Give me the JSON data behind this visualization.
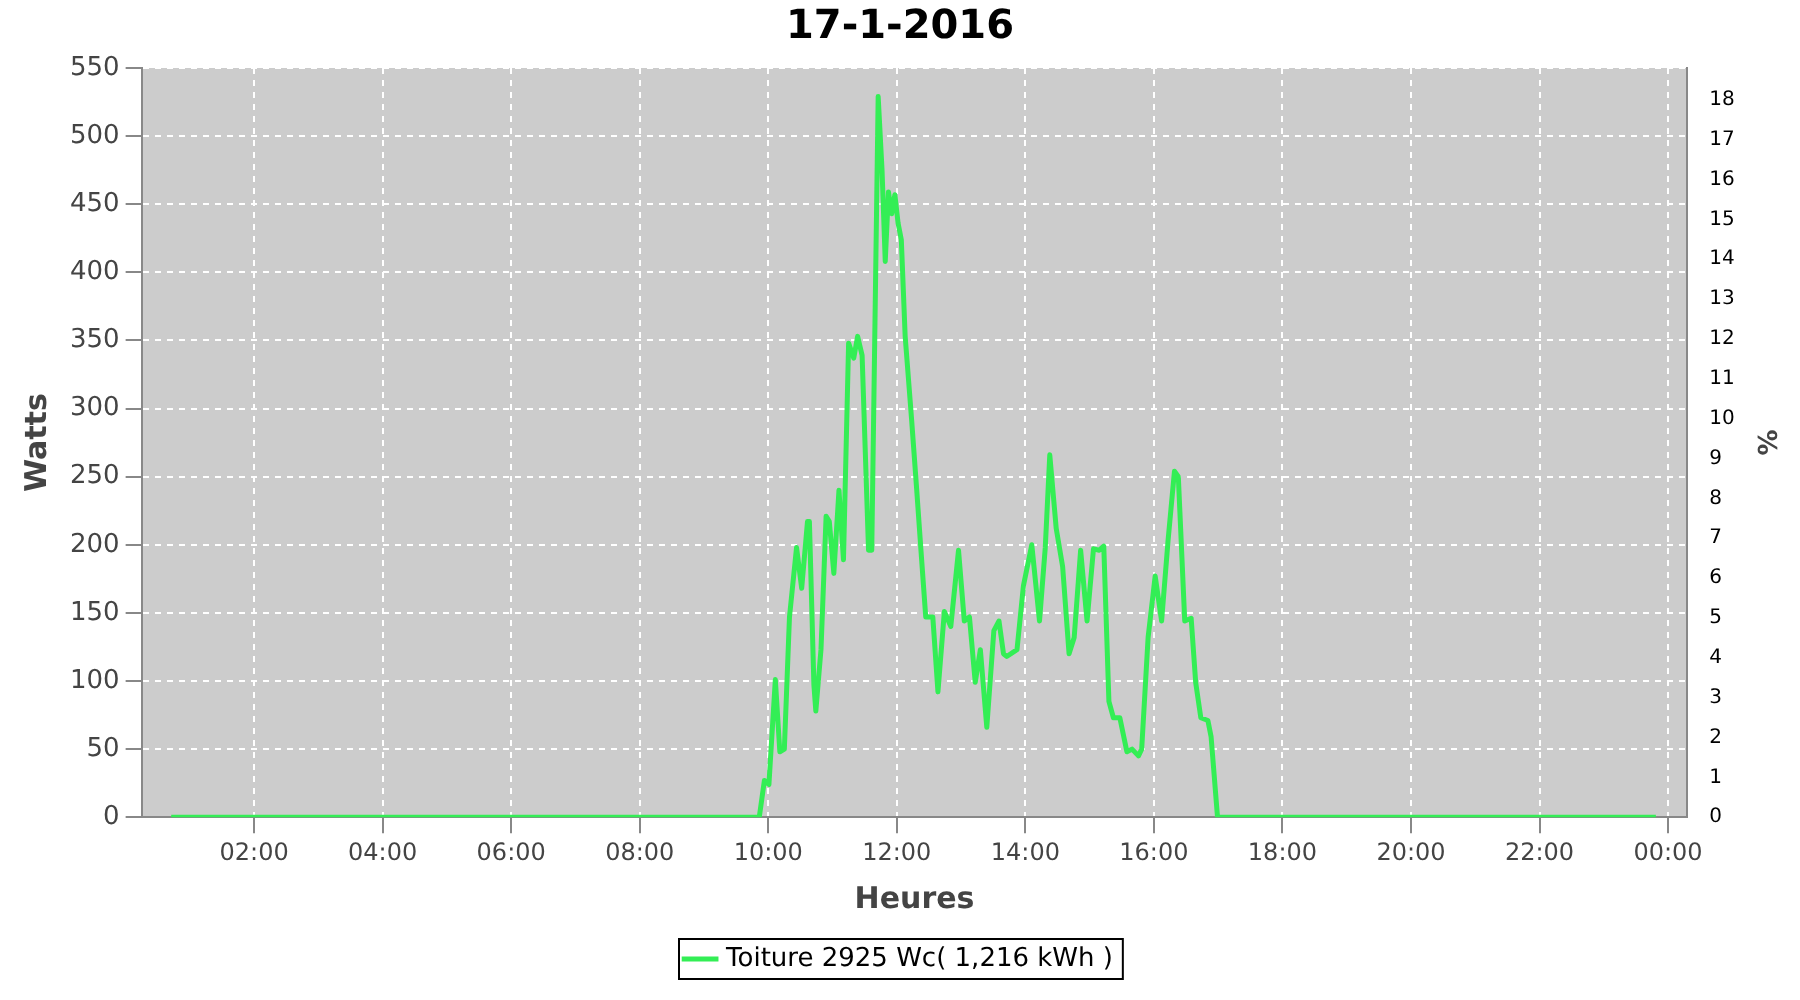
{
  "chart_data": {
    "type": "line",
    "title": "17-1-2016",
    "xlabel": "Heures",
    "ylabel": "Watts",
    "y2label": "%",
    "xlim": [
      0.25,
      24.3
    ],
    "xticks": [
      {
        "value": 2,
        "label": "02:00"
      },
      {
        "value": 4,
        "label": "04:00"
      },
      {
        "value": 6,
        "label": "06:00"
      },
      {
        "value": 8,
        "label": "08:00"
      },
      {
        "value": 10,
        "label": "10:00"
      },
      {
        "value": 12,
        "label": "12:00"
      },
      {
        "value": 14,
        "label": "14:00"
      },
      {
        "value": 16,
        "label": "16:00"
      },
      {
        "value": 18,
        "label": "18:00"
      },
      {
        "value": 20,
        "label": "20:00"
      },
      {
        "value": 22,
        "label": "22:00"
      },
      {
        "value": 24,
        "label": "00:00"
      }
    ],
    "ylim": [
      0,
      550
    ],
    "yticks": [
      0,
      50,
      100,
      150,
      200,
      250,
      300,
      350,
      400,
      450,
      500,
      550
    ],
    "y2lim": [
      0,
      18.8
    ],
    "y2ticks": [
      0,
      1,
      2,
      3,
      4,
      5,
      6,
      7,
      8,
      9,
      10,
      11,
      12,
      13,
      14,
      15,
      16,
      17,
      18
    ],
    "grid": true,
    "legend": "bottom",
    "marker": "none",
    "line_style": "solid",
    "series": [
      {
        "name": "Toiture 2925 Wc( 1,216 kWh )",
        "color": "#33ee55",
        "x": [
          0.71,
          9.86,
          9.94,
          10.01,
          10.11,
          10.18,
          10.25,
          10.33,
          10.44,
          10.52,
          10.61,
          10.64,
          10.71,
          10.74,
          10.82,
          10.9,
          10.95,
          11.02,
          11.1,
          11.17,
          11.25,
          11.33,
          11.39,
          11.46,
          11.56,
          11.61,
          11.71,
          11.77,
          11.82,
          11.87,
          11.92,
          11.97,
          12.02,
          12.07,
          12.13,
          12.23,
          12.31,
          12.38,
          12.45,
          12.56,
          12.64,
          12.74,
          12.84,
          12.96,
          13.05,
          13.13,
          13.22,
          13.3,
          13.4,
          13.51,
          13.59,
          13.66,
          13.71,
          13.87,
          13.97,
          14.1,
          14.22,
          14.31,
          14.38,
          14.48,
          14.58,
          14.68,
          14.76,
          14.86,
          14.96,
          15.06,
          15.15,
          15.22,
          15.3,
          15.37,
          15.47,
          15.58,
          15.66,
          15.76,
          15.81,
          15.91,
          16.02,
          16.12,
          16.22,
          16.32,
          16.38,
          16.48,
          16.58,
          16.65,
          16.73,
          16.84,
          16.89,
          16.99,
          23.81
        ],
        "values": [
          0,
          0,
          27,
          24,
          101,
          48,
          50,
          147,
          198,
          168,
          217,
          217,
          97,
          78,
          123,
          221,
          217,
          179,
          240,
          189,
          348,
          337,
          353,
          339,
          196,
          196,
          529,
          475,
          408,
          459,
          443,
          457,
          436,
          424,
          353,
          292,
          240,
          193,
          147,
          147,
          92,
          151,
          140,
          196,
          144,
          147,
          99,
          123,
          66,
          137,
          144,
          120,
          118,
          123,
          170,
          200,
          144,
          198,
          266,
          212,
          184,
          120,
          132,
          196,
          144,
          197,
          196,
          199,
          85,
          73,
          73,
          48,
          50,
          45,
          50,
          132,
          177,
          144,
          203,
          254,
          250,
          144,
          146,
          99,
          73,
          71,
          59,
          0,
          0
        ]
      }
    ]
  }
}
